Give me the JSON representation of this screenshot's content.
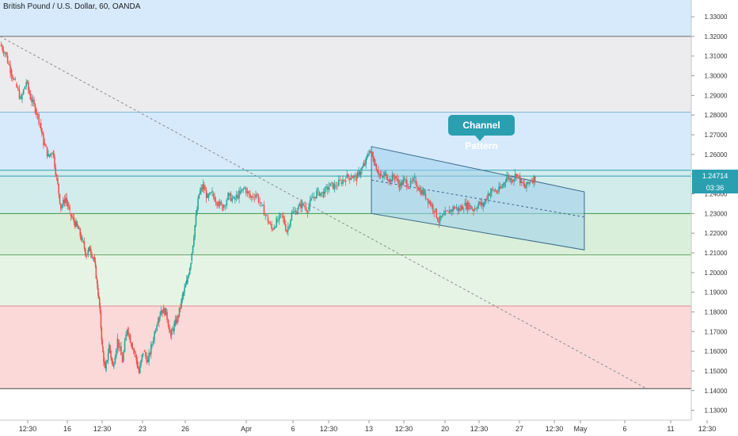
{
  "header": {
    "title": "British Pound / U.S. Dollar, 60, OANDA"
  },
  "annotation": {
    "label": "Channel Pattern"
  },
  "price_badges": {
    "last_price": "1.24714",
    "countdown": "03:36"
  },
  "colors": {
    "band_blue": "#d6eafc",
    "band_gray": "#ececee",
    "band_teal": "#d2ecec",
    "band_green": "#d9efd9",
    "band_green_light": "#e6f4e6",
    "band_red": "#fbd9d9",
    "candle_up": "#26a69a",
    "candle_down": "#ef5350",
    "price_badge": "#2a9fb0",
    "channel_fill": "#9fd0ec"
  },
  "chart_data": {
    "type": "candlestick",
    "title": "British Pound / U.S. Dollar, 60, OANDA",
    "ylim": [
      1.125,
      1.3385
    ],
    "y_ticks": [
      "1.33000",
      "1.32000",
      "1.31000",
      "1.30000",
      "1.29000",
      "1.28000",
      "1.27000",
      "1.26000",
      "1.25000",
      "1.24000",
      "1.23000",
      "1.22000",
      "1.21000",
      "1.20000",
      "1.19000",
      "1.18000",
      "1.17000",
      "1.16000",
      "1.15000",
      "1.14000",
      "1.13000"
    ],
    "x_ticks": [
      "12:30",
      "16",
      "12:30",
      "23",
      "26",
      "Apr",
      "6",
      "12:30",
      "13",
      "12:30",
      "20",
      "12:30",
      "27",
      "12:30",
      "May",
      "6",
      "11",
      "12:30"
    ],
    "bands": [
      {
        "from": 1.3385,
        "to": 1.32,
        "color": "band_blue"
      },
      {
        "from": 1.32,
        "to": 1.2815,
        "color": "band_gray"
      },
      {
        "from": 1.2815,
        "to": 1.252,
        "color": "band_blue"
      },
      {
        "from": 1.252,
        "to": 1.23,
        "color": "band_teal"
      },
      {
        "from": 1.23,
        "to": 1.209,
        "color": "band_green"
      },
      {
        "from": 1.209,
        "to": 1.183,
        "color": "band_green_light"
      },
      {
        "from": 1.183,
        "to": 1.141,
        "color": "band_red"
      }
    ],
    "channel": {
      "upper": [
        [
          0.5373,
          1.264
        ],
        [
          0.8453,
          1.241
        ]
      ],
      "lower": [
        [
          0.5373,
          1.23
        ],
        [
          0.8453,
          1.2115
        ]
      ],
      "mid": [
        [
          0.5373,
          1.247
        ],
        [
          0.8453,
          1.2282
        ]
      ]
    },
    "trendline": [
      [
        0.0,
        1.32
      ],
      [
        0.9356,
        1.141
      ]
    ],
    "price_path": [
      [
        0.0,
        1.316
      ],
      [
        0.007,
        1.312
      ],
      [
        0.015,
        1.303
      ],
      [
        0.022,
        1.296
      ],
      [
        0.03,
        1.288
      ],
      [
        0.038,
        1.297
      ],
      [
        0.044,
        1.289
      ],
      [
        0.051,
        1.283
      ],
      [
        0.058,
        1.276
      ],
      [
        0.063,
        1.266
      ],
      [
        0.07,
        1.259
      ],
      [
        0.076,
        1.262
      ],
      [
        0.082,
        1.248
      ],
      [
        0.088,
        1.233
      ],
      [
        0.095,
        1.238
      ],
      [
        0.101,
        1.23
      ],
      [
        0.107,
        1.226
      ],
      [
        0.113,
        1.222
      ],
      [
        0.119,
        1.216
      ],
      [
        0.125,
        1.209
      ],
      [
        0.13,
        1.212
      ],
      [
        0.136,
        1.207
      ],
      [
        0.14,
        1.196
      ],
      [
        0.144,
        1.183
      ],
      [
        0.148,
        1.162
      ],
      [
        0.152,
        1.15
      ],
      [
        0.158,
        1.163
      ],
      [
        0.163,
        1.152
      ],
      [
        0.17,
        1.166
      ],
      [
        0.177,
        1.155
      ],
      [
        0.184,
        1.172
      ],
      [
        0.19,
        1.164
      ],
      [
        0.196,
        1.158
      ],
      [
        0.201,
        1.149
      ],
      [
        0.207,
        1.16
      ],
      [
        0.214,
        1.155
      ],
      [
        0.22,
        1.164
      ],
      [
        0.227,
        1.175
      ],
      [
        0.233,
        1.181
      ],
      [
        0.24,
        1.18
      ],
      [
        0.247,
        1.168
      ],
      [
        0.252,
        1.173
      ],
      [
        0.258,
        1.178
      ],
      [
        0.264,
        1.188
      ],
      [
        0.27,
        1.195
      ],
      [
        0.276,
        1.206
      ],
      [
        0.282,
        1.224
      ],
      [
        0.288,
        1.24
      ],
      [
        0.294,
        1.244
      ],
      [
        0.3,
        1.238
      ],
      [
        0.307,
        1.24
      ],
      [
        0.314,
        1.236
      ],
      [
        0.322,
        1.233
      ],
      [
        0.33,
        1.239
      ],
      [
        0.338,
        1.237
      ],
      [
        0.346,
        1.24
      ],
      [
        0.354,
        1.243
      ],
      [
        0.362,
        1.238
      ],
      [
        0.37,
        1.24
      ],
      [
        0.378,
        1.234
      ],
      [
        0.386,
        1.228
      ],
      [
        0.393,
        1.222
      ],
      [
        0.4,
        1.226
      ],
      [
        0.408,
        1.229
      ],
      [
        0.415,
        1.221
      ],
      [
        0.422,
        1.23
      ],
      [
        0.43,
        1.232
      ],
      [
        0.437,
        1.235
      ],
      [
        0.445,
        1.232
      ],
      [
        0.452,
        1.238
      ],
      [
        0.46,
        1.241
      ],
      [
        0.468,
        1.24
      ],
      [
        0.476,
        1.244
      ],
      [
        0.484,
        1.244
      ],
      [
        0.492,
        1.246
      ],
      [
        0.5,
        1.248
      ],
      [
        0.508,
        1.249
      ],
      [
        0.516,
        1.248
      ],
      [
        0.522,
        1.252
      ],
      [
        0.528,
        1.255
      ],
      [
        0.534,
        1.262
      ],
      [
        0.54,
        1.258
      ],
      [
        0.546,
        1.252
      ],
      [
        0.552,
        1.248
      ],
      [
        0.558,
        1.25
      ],
      [
        0.564,
        1.247
      ],
      [
        0.571,
        1.249
      ],
      [
        0.578,
        1.244
      ],
      [
        0.585,
        1.247
      ],
      [
        0.592,
        1.244
      ],
      [
        0.6,
        1.247
      ],
      [
        0.607,
        1.242
      ],
      [
        0.614,
        1.24
      ],
      [
        0.621,
        1.236
      ],
      [
        0.628,
        1.232
      ],
      [
        0.635,
        1.226
      ],
      [
        0.642,
        1.229
      ],
      [
        0.65,
        1.231
      ],
      [
        0.657,
        1.233
      ],
      [
        0.664,
        1.232
      ],
      [
        0.671,
        1.234
      ],
      [
        0.678,
        1.234
      ],
      [
        0.685,
        1.232
      ],
      [
        0.692,
        1.235
      ],
      [
        0.699,
        1.234
      ],
      [
        0.706,
        1.24
      ],
      [
        0.713,
        1.242
      ],
      [
        0.72,
        1.241
      ],
      [
        0.727,
        1.244
      ],
      [
        0.733,
        1.249
      ],
      [
        0.74,
        1.247
      ],
      [
        0.747,
        1.25
      ],
      [
        0.754,
        1.246
      ],
      [
        0.76,
        1.243
      ],
      [
        0.767,
        1.247
      ],
      [
        0.774,
        1.248
      ]
    ]
  }
}
